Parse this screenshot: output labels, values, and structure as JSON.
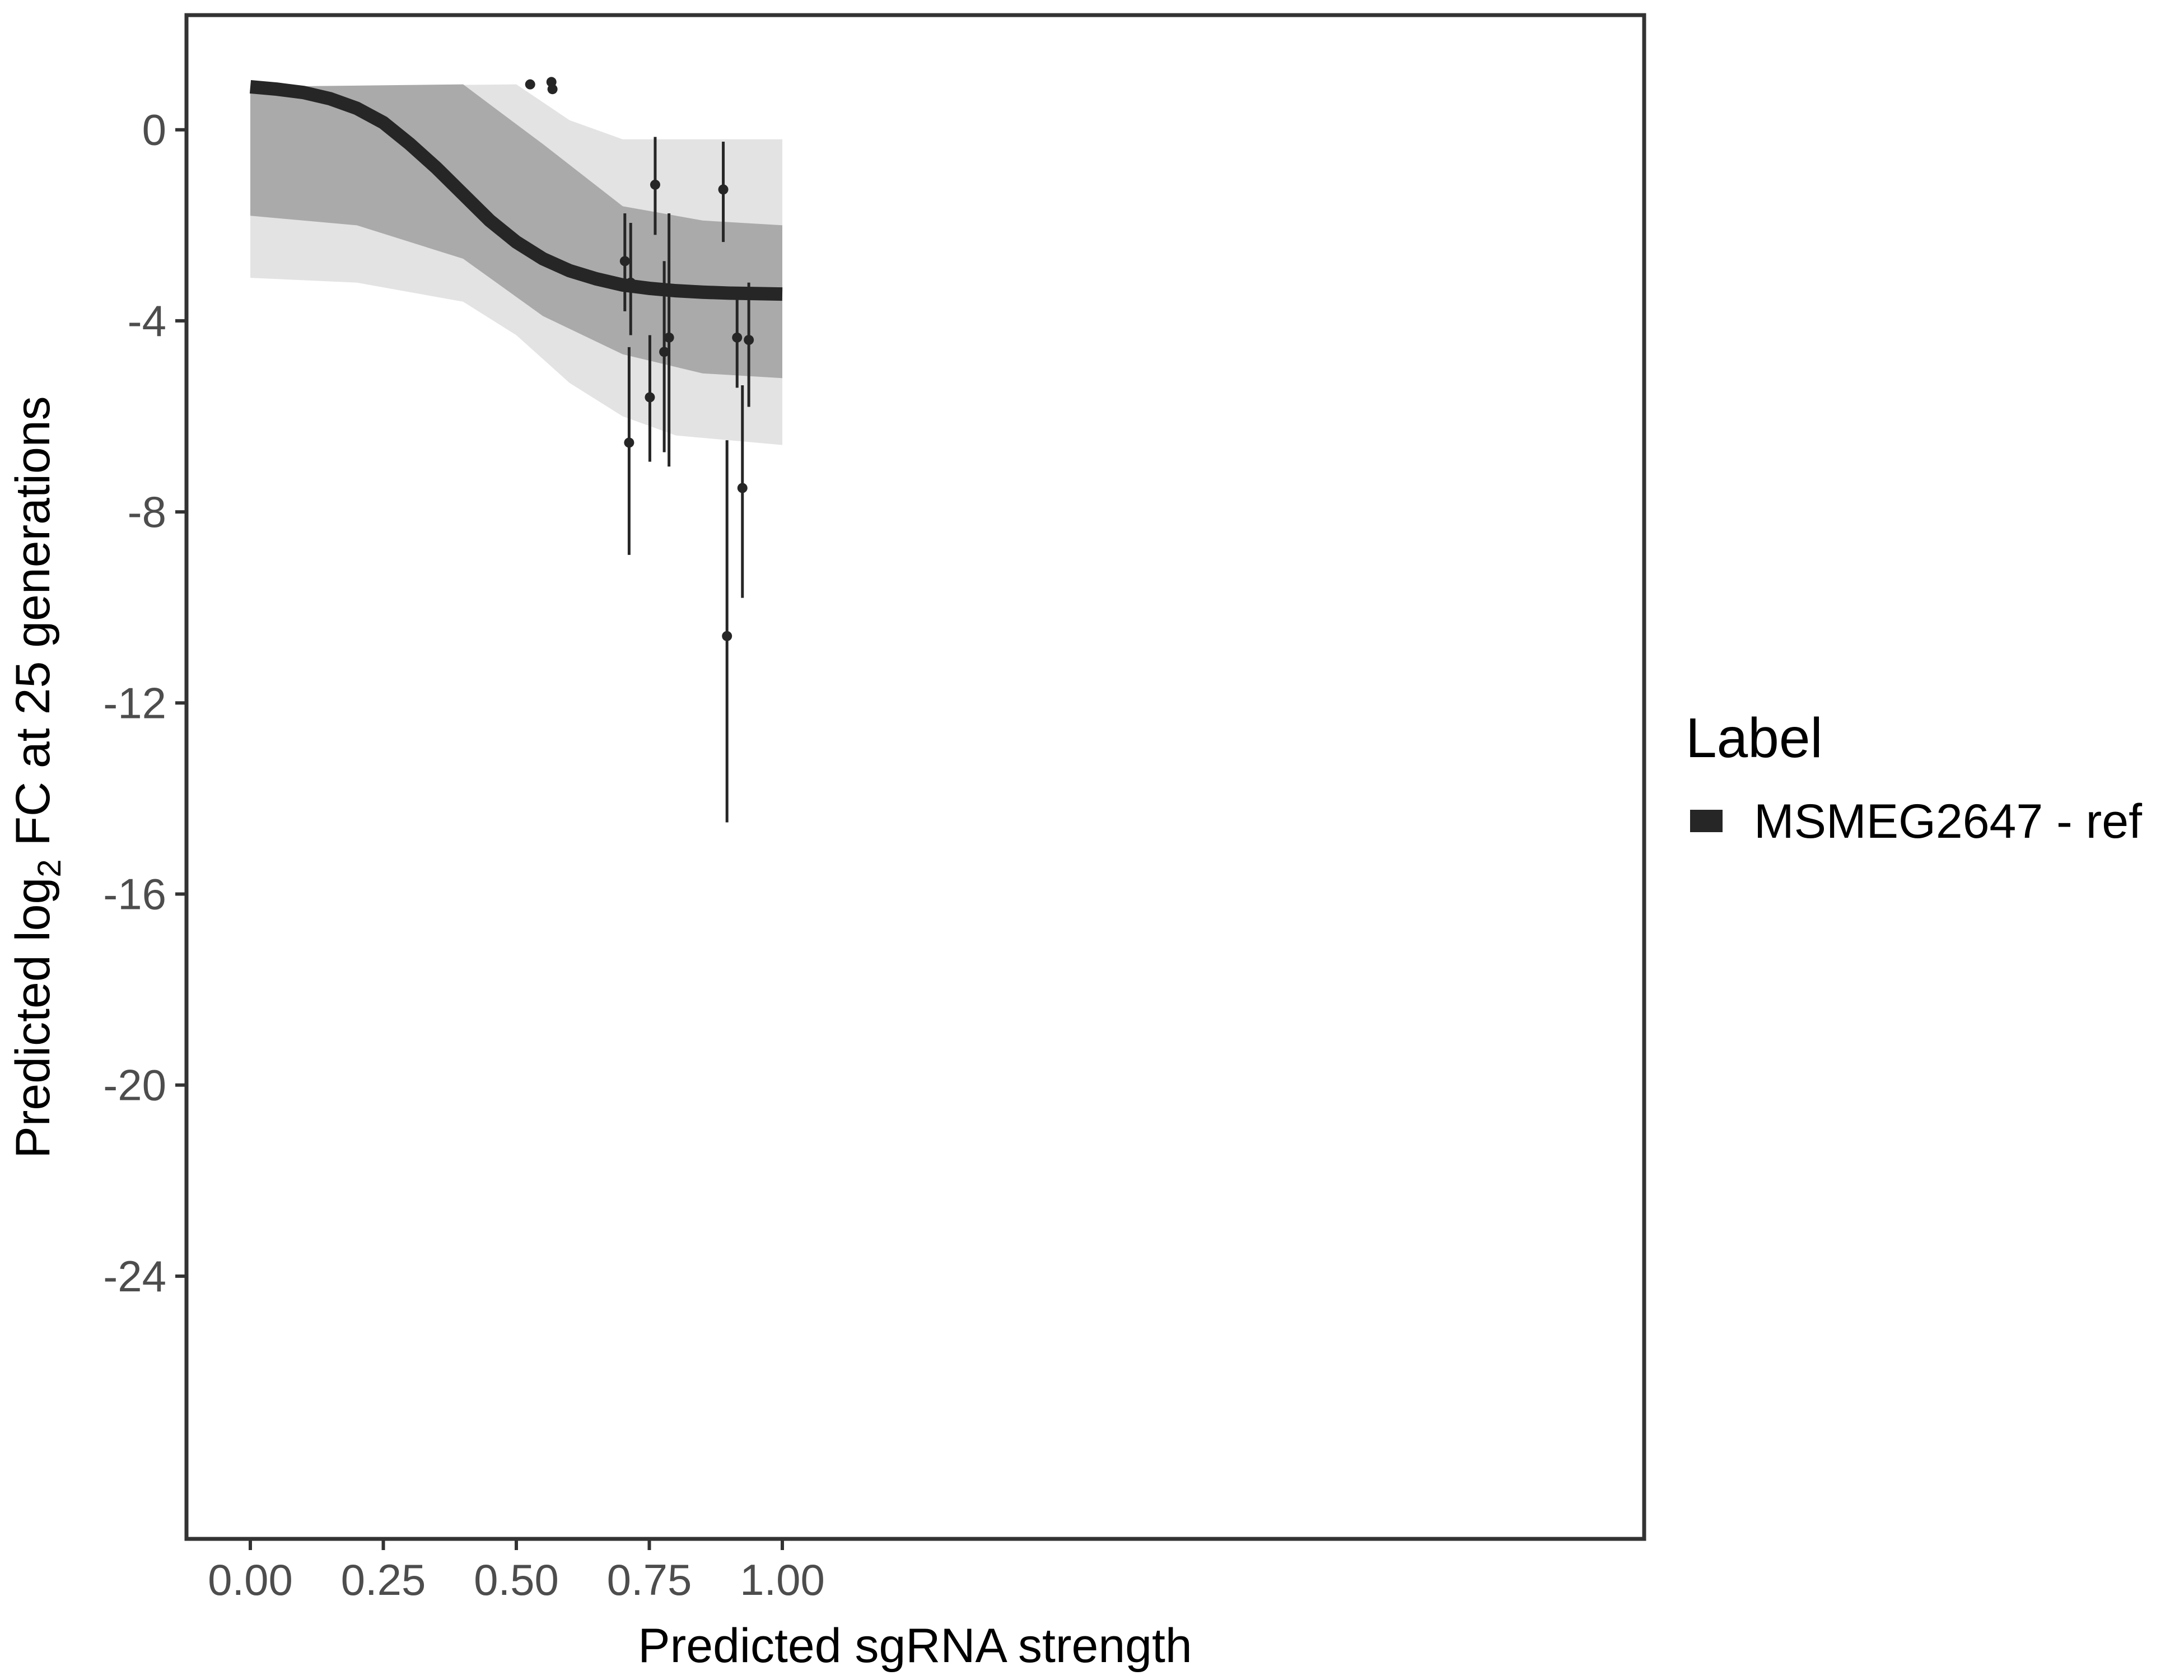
{
  "chart_data": {
    "type": "line",
    "xlabel": "Predicted sgRNA strength",
    "ylabel": {
      "prefix": "Predicted  log",
      "subscript": "2",
      "suffix": " FC at 25 generations"
    },
    "xlim": [
      -0.12,
      2.62
    ],
    "ylim": [
      -29.5,
      2.4
    ],
    "x_ticks": [
      {
        "value": 0.0,
        "label": "0.00"
      },
      {
        "value": 0.25,
        "label": "0.25"
      },
      {
        "value": 0.5,
        "label": "0.50"
      },
      {
        "value": 0.75,
        "label": "0.75"
      },
      {
        "value": 1.0,
        "label": "1.00"
      }
    ],
    "y_ticks": [
      {
        "value": 0,
        "label": "0"
      },
      {
        "value": -4,
        "label": "-4"
      },
      {
        "value": -8,
        "label": "-8"
      },
      {
        "value": -12,
        "label": "-12"
      },
      {
        "value": -16,
        "label": "-16"
      },
      {
        "value": -20,
        "label": "-20"
      },
      {
        "value": -24,
        "label": "-24"
      }
    ],
    "grid": false,
    "legend": {
      "title": "Label",
      "placement": "right",
      "entries": [
        {
          "name": "MSMEG2647 - ref",
          "color": "#262626"
        }
      ]
    },
    "fit_curve": {
      "name": "MSMEG2647 - ref",
      "color": "#262626",
      "x": [
        0.0,
        0.05,
        0.1,
        0.15,
        0.2,
        0.25,
        0.3,
        0.35,
        0.4,
        0.45,
        0.5,
        0.55,
        0.6,
        0.65,
        0.7,
        0.75,
        0.8,
        0.85,
        0.9,
        0.95,
        1.0
      ],
      "y": [
        0.9,
        0.85,
        0.78,
        0.65,
        0.45,
        0.15,
        -0.3,
        -0.8,
        -1.35,
        -1.9,
        -2.35,
        -2.7,
        -2.95,
        -3.12,
        -3.25,
        -3.32,
        -3.37,
        -3.4,
        -3.42,
        -3.43,
        -3.44
      ]
    },
    "posterior_band": {
      "color": "#a6a6a6",
      "top": [
        {
          "x": 0.0,
          "y": 0.9
        },
        {
          "x": 0.5,
          "y": 0.95
        },
        {
          "x": 0.6,
          "y": 0.2
        },
        {
          "x": 0.7,
          "y": -0.2
        },
        {
          "x": 0.85,
          "y": -0.2
        },
        {
          "x": 1.0,
          "y": -0.2
        }
      ],
      "bottom": [
        {
          "x": 0.0,
          "y": -3.1
        },
        {
          "x": 0.2,
          "y": -3.2
        },
        {
          "x": 0.4,
          "y": -3.6
        },
        {
          "x": 0.5,
          "y": -4.3
        },
        {
          "x": 0.6,
          "y": -5.3
        },
        {
          "x": 0.7,
          "y": -6.0
        },
        {
          "x": 0.8,
          "y": -6.4
        },
        {
          "x": 1.0,
          "y": -6.6
        }
      ],
      "core_top": [
        {
          "x": 0.0,
          "y": 0.9
        },
        {
          "x": 0.4,
          "y": 0.95
        },
        {
          "x": 0.55,
          "y": -0.3
        },
        {
          "x": 0.7,
          "y": -1.6
        },
        {
          "x": 0.85,
          "y": -1.9
        },
        {
          "x": 1.0,
          "y": -2.0
        }
      ],
      "core_bottom": [
        {
          "x": 0.0,
          "y": -1.8
        },
        {
          "x": 0.2,
          "y": -2.0
        },
        {
          "x": 0.4,
          "y": -2.7
        },
        {
          "x": 0.55,
          "y": -3.9
        },
        {
          "x": 0.7,
          "y": -4.7
        },
        {
          "x": 0.85,
          "y": -5.1
        },
        {
          "x": 1.0,
          "y": -5.2
        }
      ]
    },
    "points": [
      {
        "x": 0.526,
        "y": 0.95,
        "ymin": 0.95,
        "ymax": 0.95
      },
      {
        "x": 0.566,
        "y": 1.0,
        "ymin": 1.0,
        "ymax": 1.0
      },
      {
        "x": 0.568,
        "y": 0.85,
        "ymin": 0.85,
        "ymax": 0.85
      },
      {
        "x": 0.704,
        "y": -2.75,
        "ymin": -3.8,
        "ymax": -1.75
      },
      {
        "x": 0.712,
        "y": -6.55,
        "ymin": -8.9,
        "ymax": -4.55
      },
      {
        "x": 0.715,
        "y": -3.2,
        "ymin": -4.3,
        "ymax": -1.95
      },
      {
        "x": 0.751,
        "y": -5.6,
        "ymin": -6.95,
        "ymax": -4.3
      },
      {
        "x": 0.761,
        "y": -1.15,
        "ymin": -2.2,
        "ymax": -0.15
      },
      {
        "x": 0.778,
        "y": -4.65,
        "ymin": -6.75,
        "ymax": -2.75
      },
      {
        "x": 0.787,
        "y": -4.35,
        "ymin": -7.05,
        "ymax": -1.75
      },
      {
        "x": 0.889,
        "y": -1.25,
        "ymin": -2.35,
        "ymax": -0.25
      },
      {
        "x": 0.896,
        "y": -10.6,
        "ymin": -14.5,
        "ymax": -6.5
      },
      {
        "x": 0.915,
        "y": -4.35,
        "ymin": -5.4,
        "ymax": -3.35
      },
      {
        "x": 0.925,
        "y": -7.5,
        "ymin": -9.8,
        "ymax": -5.35
      },
      {
        "x": 0.937,
        "y": -4.4,
        "ymin": -5.8,
        "ymax": -3.2
      }
    ]
  }
}
